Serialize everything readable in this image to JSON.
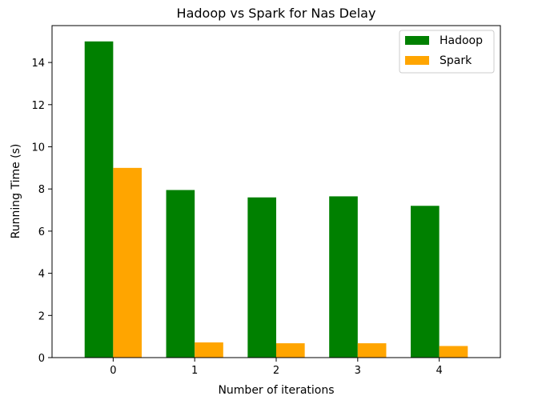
{
  "chart_data": {
    "type": "bar",
    "title": "Hadoop vs Spark for Nas Delay",
    "xlabel": "Number of iterations",
    "ylabel": "Running Time (s)",
    "categories": [
      "0",
      "1",
      "2",
      "3",
      "4"
    ],
    "series": [
      {
        "name": "Hadoop",
        "color": "#008000",
        "values": [
          15.0,
          7.95,
          7.6,
          7.65,
          7.2
        ]
      },
      {
        "name": "Spark",
        "color": "#FFA500",
        "values": [
          9.0,
          0.72,
          0.68,
          0.68,
          0.55
        ]
      }
    ],
    "ylim": [
      0,
      15.75
    ],
    "yticks": [
      "0",
      "2",
      "4",
      "6",
      "8",
      "10",
      "12",
      "14"
    ],
    "grid": false,
    "legend_position": "top-right"
  }
}
